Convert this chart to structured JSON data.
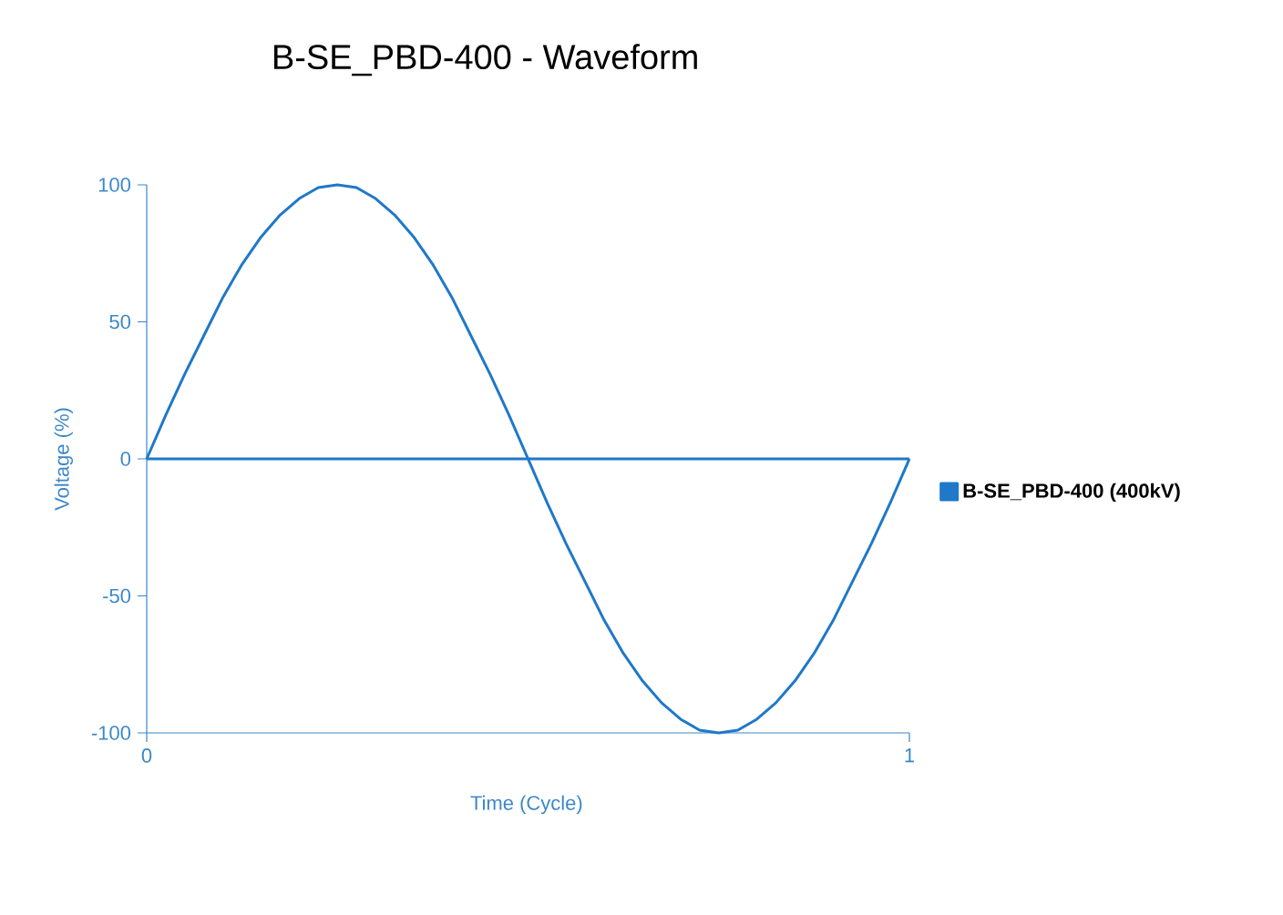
{
  "chart_data": {
    "type": "line",
    "title": "B-SE_PBD-400 - Waveform",
    "xlabel": "Time (Cycle)",
    "ylabel": "Voltage (%)",
    "x": [
      0,
      0.025,
      0.05,
      0.075,
      0.1,
      0.125,
      0.15,
      0.175,
      0.2,
      0.225,
      0.25,
      0.275,
      0.3,
      0.325,
      0.35,
      0.375,
      0.4,
      0.425,
      0.45,
      0.475,
      0.5,
      0.525,
      0.55,
      0.575,
      0.6,
      0.625,
      0.65,
      0.675,
      0.7,
      0.725,
      0.75,
      0.775,
      0.8,
      0.825,
      0.85,
      0.875,
      0.9,
      0.925,
      0.95,
      0.975,
      1
    ],
    "series": [
      {
        "name": "B-SE_PBD-400 (400kV)",
        "color": "#1f78c8",
        "values": [
          0,
          16,
          31,
          45,
          59,
          71,
          81,
          89,
          95,
          99,
          100,
          99,
          95,
          89,
          81,
          71,
          59,
          45,
          31,
          16,
          0,
          -16,
          -31,
          -45,
          -59,
          -71,
          -81,
          -89,
          -95,
          -99,
          -100,
          -99,
          -95,
          -89,
          -81,
          -71,
          -59,
          -45,
          -31,
          -16,
          0
        ]
      }
    ],
    "xlim": [
      0,
      1
    ],
    "ylim": [
      -100,
      100
    ],
    "xticks": [
      0,
      1
    ],
    "yticks": [
      -100,
      -50,
      0,
      50,
      100
    ],
    "ref_lines": [
      {
        "axis": "y",
        "value": 0,
        "color": "#1f78c8"
      }
    ],
    "legend": "right"
  }
}
